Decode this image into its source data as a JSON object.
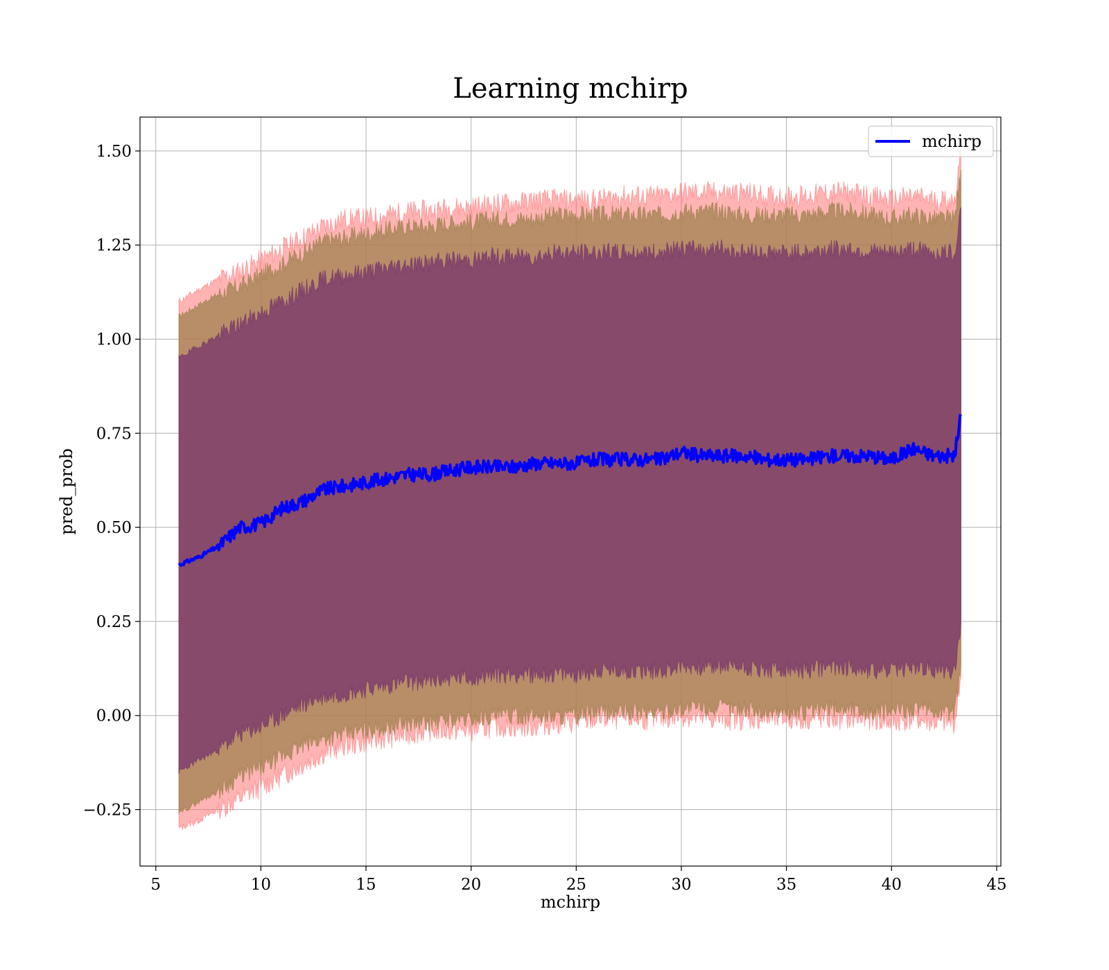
{
  "chart_data": {
    "type": "line",
    "title": "Learning mchirp",
    "xlabel": "mchirp",
    "ylabel": "pred_prob",
    "xlim": [
      4.25,
      45.2
    ],
    "ylim": [
      -0.4,
      1.59
    ],
    "xticks": [
      5,
      10,
      15,
      20,
      25,
      30,
      35,
      40,
      45
    ],
    "xtick_labels": [
      "5",
      "10",
      "15",
      "20",
      "25",
      "30",
      "35",
      "40",
      "45"
    ],
    "yticks": [
      -0.25,
      0.0,
      0.25,
      0.5,
      0.75,
      1.0,
      1.25,
      1.5
    ],
    "ytick_labels": [
      "−0.25",
      "0.00",
      "0.25",
      "0.50",
      "0.75",
      "1.00",
      "1.25",
      "1.50"
    ],
    "grid": true,
    "legend": {
      "position": "top-right",
      "entries": [
        "mchirp"
      ]
    },
    "colors": {
      "line": "#0000ff",
      "band_outer": "#ff6a6a",
      "band_middle": "#a0824f",
      "band_inner": "#7a3a6a"
    },
    "x": [
      6.1,
      7.0,
      8.0,
      9.0,
      10.0,
      11.0,
      12.0,
      13.0,
      14.0,
      15.0,
      16.0,
      17.0,
      18.0,
      19.0,
      20.0,
      21.0,
      22.0,
      23.0,
      24.0,
      25.0,
      26.0,
      27.0,
      28.0,
      29.0,
      30.0,
      31.0,
      32.0,
      33.0,
      34.0,
      35.0,
      36.0,
      37.0,
      38.0,
      39.0,
      40.0,
      41.0,
      42.0,
      43.0,
      43.3
    ],
    "series": [
      {
        "name": "mchirp",
        "values": [
          0.4,
          0.42,
          0.45,
          0.5,
          0.51,
          0.55,
          0.57,
          0.6,
          0.61,
          0.62,
          0.63,
          0.64,
          0.64,
          0.65,
          0.66,
          0.66,
          0.66,
          0.67,
          0.67,
          0.67,
          0.68,
          0.68,
          0.68,
          0.68,
          0.7,
          0.69,
          0.69,
          0.69,
          0.68,
          0.68,
          0.68,
          0.69,
          0.69,
          0.69,
          0.68,
          0.71,
          0.69,
          0.69,
          0.8
        ]
      }
    ],
    "bands": [
      {
        "upper": [
          1.1,
          1.13,
          1.16,
          1.18,
          1.21,
          1.24,
          1.27,
          1.3,
          1.32,
          1.32,
          1.33,
          1.34,
          1.34,
          1.35,
          1.35,
          1.36,
          1.36,
          1.37,
          1.37,
          1.37,
          1.37,
          1.38,
          1.38,
          1.38,
          1.39,
          1.39,
          1.39,
          1.39,
          1.38,
          1.38,
          1.38,
          1.39,
          1.39,
          1.38,
          1.37,
          1.38,
          1.37,
          1.37,
          1.5
        ],
        "lower": [
          -0.3,
          -0.28,
          -0.25,
          -0.22,
          -0.19,
          -0.16,
          -0.13,
          -0.1,
          -0.08,
          -0.07,
          -0.06,
          -0.05,
          -0.04,
          -0.04,
          -0.04,
          -0.03,
          -0.03,
          -0.03,
          -0.02,
          -0.02,
          -0.01,
          -0.01,
          -0.01,
          -0.01,
          0.0,
          -0.01,
          -0.01,
          -0.01,
          -0.01,
          -0.01,
          -0.01,
          -0.01,
          -0.01,
          -0.01,
          -0.02,
          -0.01,
          -0.02,
          -0.02,
          0.1
        ]
      },
      {
        "upper": [
          1.06,
          1.09,
          1.12,
          1.14,
          1.17,
          1.2,
          1.23,
          1.26,
          1.27,
          1.28,
          1.29,
          1.3,
          1.3,
          1.31,
          1.31,
          1.32,
          1.32,
          1.32,
          1.33,
          1.33,
          1.33,
          1.33,
          1.33,
          1.33,
          1.34,
          1.34,
          1.34,
          1.33,
          1.33,
          1.33,
          1.33,
          1.34,
          1.34,
          1.33,
          1.32,
          1.33,
          1.32,
          1.32,
          1.45
        ]
      },
      {
        "upper": [
          0.95,
          0.98,
          1.01,
          1.04,
          1.07,
          1.1,
          1.13,
          1.16,
          1.17,
          1.18,
          1.19,
          1.2,
          1.2,
          1.21,
          1.21,
          1.22,
          1.22,
          1.22,
          1.23,
          1.23,
          1.23,
          1.23,
          1.23,
          1.23,
          1.24,
          1.24,
          1.24,
          1.23,
          1.23,
          1.23,
          1.23,
          1.24,
          1.24,
          1.23,
          1.23,
          1.24,
          1.23,
          1.23,
          1.35
        ],
        "lower": [
          -0.15,
          -0.12,
          -0.09,
          -0.05,
          -0.03,
          0.0,
          0.03,
          0.05,
          0.06,
          0.07,
          0.08,
          0.09,
          0.09,
          0.1,
          0.1,
          0.11,
          0.11,
          0.11,
          0.11,
          0.11,
          0.12,
          0.12,
          0.12,
          0.12,
          0.13,
          0.13,
          0.13,
          0.13,
          0.12,
          0.12,
          0.12,
          0.13,
          0.13,
          0.12,
          0.12,
          0.13,
          0.12,
          0.12,
          0.25
        ]
      }
    ]
  }
}
